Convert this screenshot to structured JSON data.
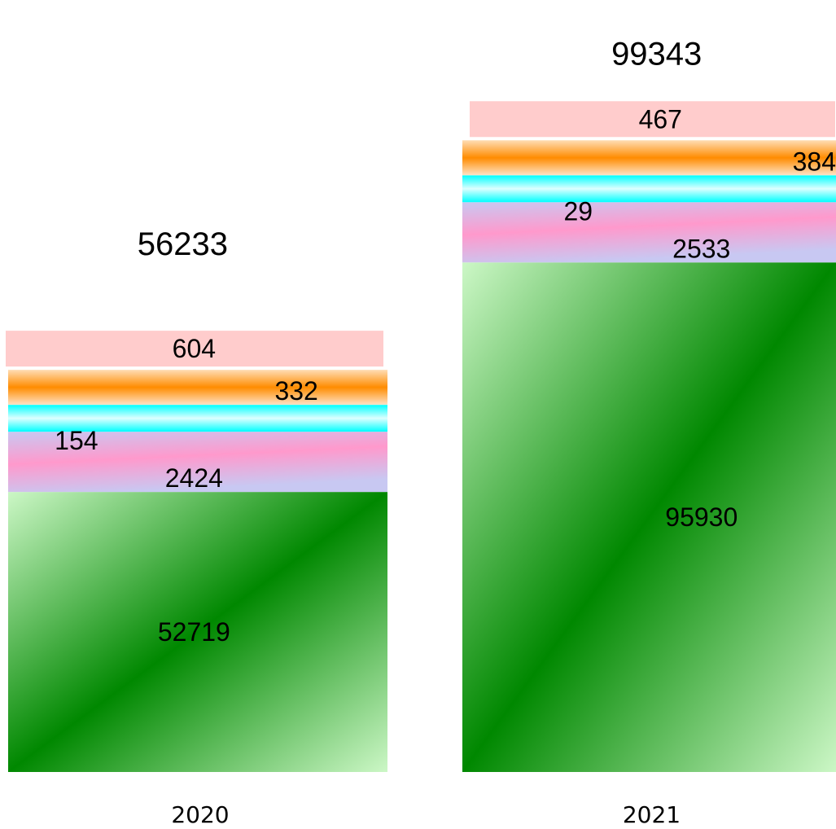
{
  "chart_data": {
    "type": "bar",
    "stacked": true,
    "categories": [
      "2020",
      "2021"
    ],
    "series": [
      {
        "values": [
          52719,
          95930
        ],
        "color": "#008800"
      },
      {
        "values": [
          2424,
          2533
        ],
        "color": "#ff99cc"
      },
      {
        "values": [
          154,
          29
        ],
        "color": "#00ffff"
      },
      {
        "values": [
          332,
          384
        ],
        "color": "#ff8c00"
      },
      {
        "values": [
          604,
          467
        ],
        "color": "#ffcccc"
      }
    ],
    "totals": [
      56233,
      99343
    ],
    "title": "",
    "xlabel": "",
    "ylabel": "",
    "grid": false,
    "legend": "none"
  }
}
